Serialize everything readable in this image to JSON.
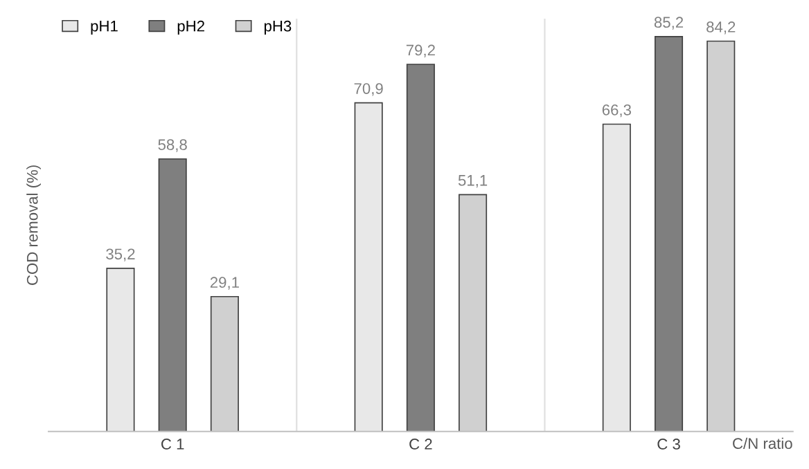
{
  "chart_data": {
    "type": "bar",
    "ylabel": "COD removal (%)",
    "xlabel": "C/N ratio",
    "categories": [
      "C 1",
      "C 2",
      "C 3"
    ],
    "series": [
      {
        "name": "pH1",
        "color": "#e8e8e8",
        "values": [
          35.2,
          70.9,
          66.3
        ],
        "value_labels": [
          "35,2",
          "70,9",
          "66,3"
        ]
      },
      {
        "name": "pH2",
        "color": "#7f7f7f",
        "values": [
          58.8,
          79.2,
          85.2
        ],
        "value_labels": [
          "58,8",
          "79,2",
          "85,2"
        ]
      },
      {
        "name": "pH3",
        "color": "#d0d0d0",
        "values": [
          29.1,
          51.1,
          84.2
        ],
        "value_labels": [
          "29,1",
          "51,1",
          "84,2"
        ]
      }
    ],
    "legend": "top left",
    "grid": false
  }
}
